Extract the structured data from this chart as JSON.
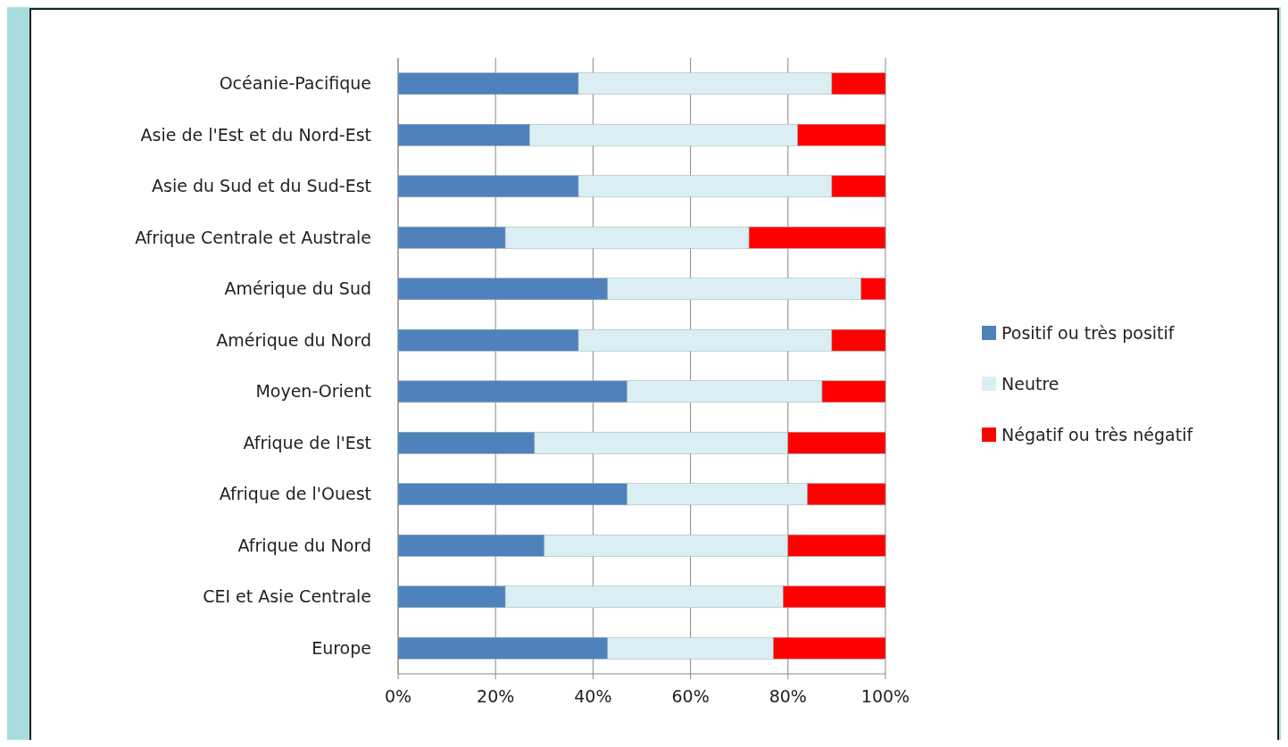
{
  "chart_data": {
    "type": "bar",
    "orientation": "horizontal",
    "stacked": true,
    "categories": [
      "Océanie-Pacifique",
      "Asie de l'Est et du Nord-Est",
      "Asie du Sud et du Sud-Est",
      "Afrique Centrale et Australe",
      "Amérique du Sud",
      "Amérique du Nord",
      "Moyen-Orient",
      "Afrique de l'Est",
      "Afrique de l'Ouest",
      "Afrique du Nord",
      "CEI et Asie Centrale",
      "Europe"
    ],
    "series": [
      {
        "name": "Positif ou très positif",
        "color": "#4f81bd",
        "values": [
          37,
          27,
          37,
          22,
          43,
          37,
          47,
          28,
          47,
          30,
          22,
          43
        ]
      },
      {
        "name": "Neutre",
        "color": "#dbeef4",
        "values": [
          52,
          55,
          52,
          50,
          52,
          52,
          40,
          52,
          37,
          50,
          57,
          34
        ]
      },
      {
        "name": "Négatif ou très négatif",
        "color": "#ff0000",
        "values": [
          11,
          18,
          11,
          28,
          5,
          11,
          13,
          20,
          16,
          20,
          21,
          23
        ]
      }
    ],
    "xlim": [
      0,
      100
    ],
    "xticks": [
      {
        "value": 0,
        "label": "0%"
      },
      {
        "value": 20,
        "label": "20%"
      },
      {
        "value": 40,
        "label": "40%"
      },
      {
        "value": 60,
        "label": "60%"
      },
      {
        "value": 80,
        "label": "80%"
      },
      {
        "value": 100,
        "label": "100%"
      }
    ],
    "grid": "x",
    "legend": "right"
  }
}
